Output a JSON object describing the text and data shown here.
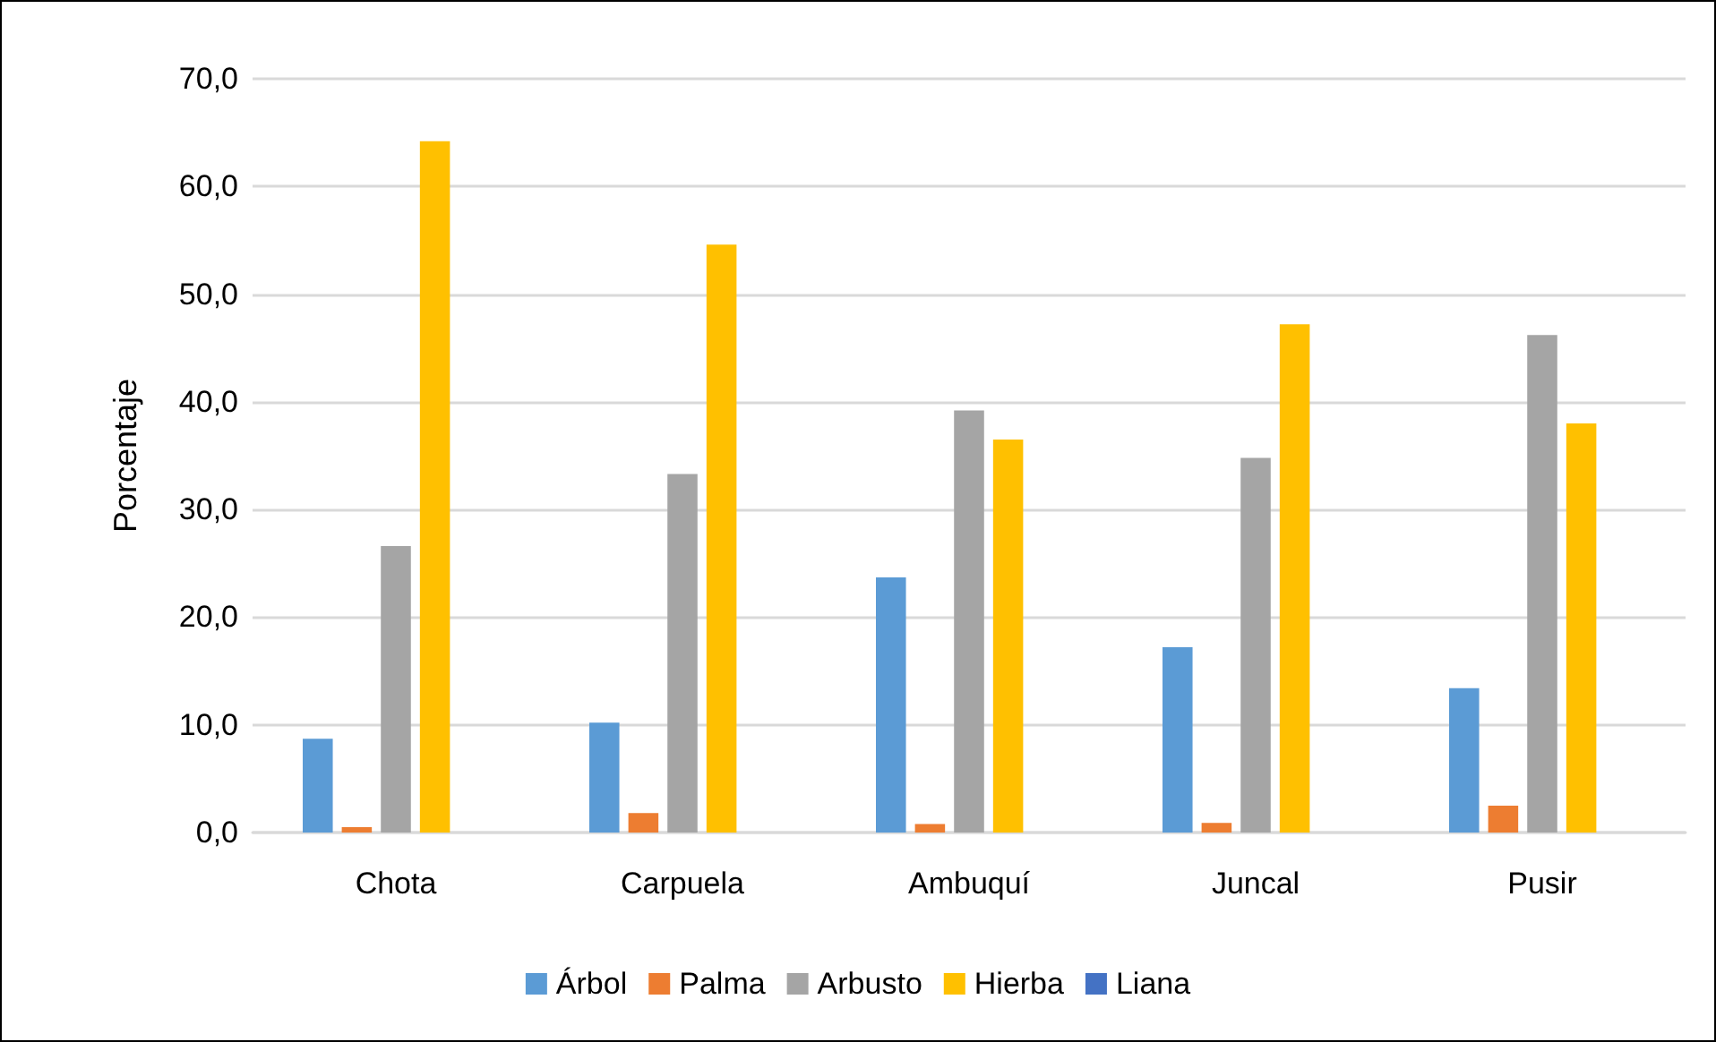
{
  "chart_data": {
    "type": "bar",
    "ylabel": "Porcentaje",
    "categories": [
      "Chota",
      "Carpuela",
      "Ambuquí",
      "Juncal",
      "Pusir"
    ],
    "series": [
      {
        "name": "Árbol",
        "color": "#5b9bd5",
        "values": [
          8.7,
          10.2,
          23.7,
          17.2,
          13.4
        ]
      },
      {
        "name": "Palma",
        "color": "#ed7d31",
        "values": [
          0.5,
          1.8,
          0.8,
          0.9,
          2.5
        ]
      },
      {
        "name": "Arbusto",
        "color": "#a5a5a5",
        "values": [
          26.6,
          33.3,
          39.2,
          34.8,
          46.2
        ]
      },
      {
        "name": "Hierba",
        "color": "#ffc000",
        "values": [
          64.2,
          54.6,
          36.5,
          47.2,
          38.0
        ]
      },
      {
        "name": "Liana",
        "color": "#4472c4",
        "values": [
          0,
          0,
          0,
          0,
          0
        ]
      }
    ],
    "ylim": [
      0,
      70
    ],
    "yticks": [
      {
        "value": 0,
        "label": "0,0"
      },
      {
        "value": 10,
        "label": "10,0"
      },
      {
        "value": 20,
        "label": "20,0"
      },
      {
        "value": 30,
        "label": "30,0"
      },
      {
        "value": 40,
        "label": "40,0"
      },
      {
        "value": 50,
        "label": "50,0"
      },
      {
        "value": 60,
        "label": "60,0"
      },
      {
        "value": 70,
        "label": "70,0"
      }
    ],
    "grid": "y",
    "legend": "bottom"
  }
}
